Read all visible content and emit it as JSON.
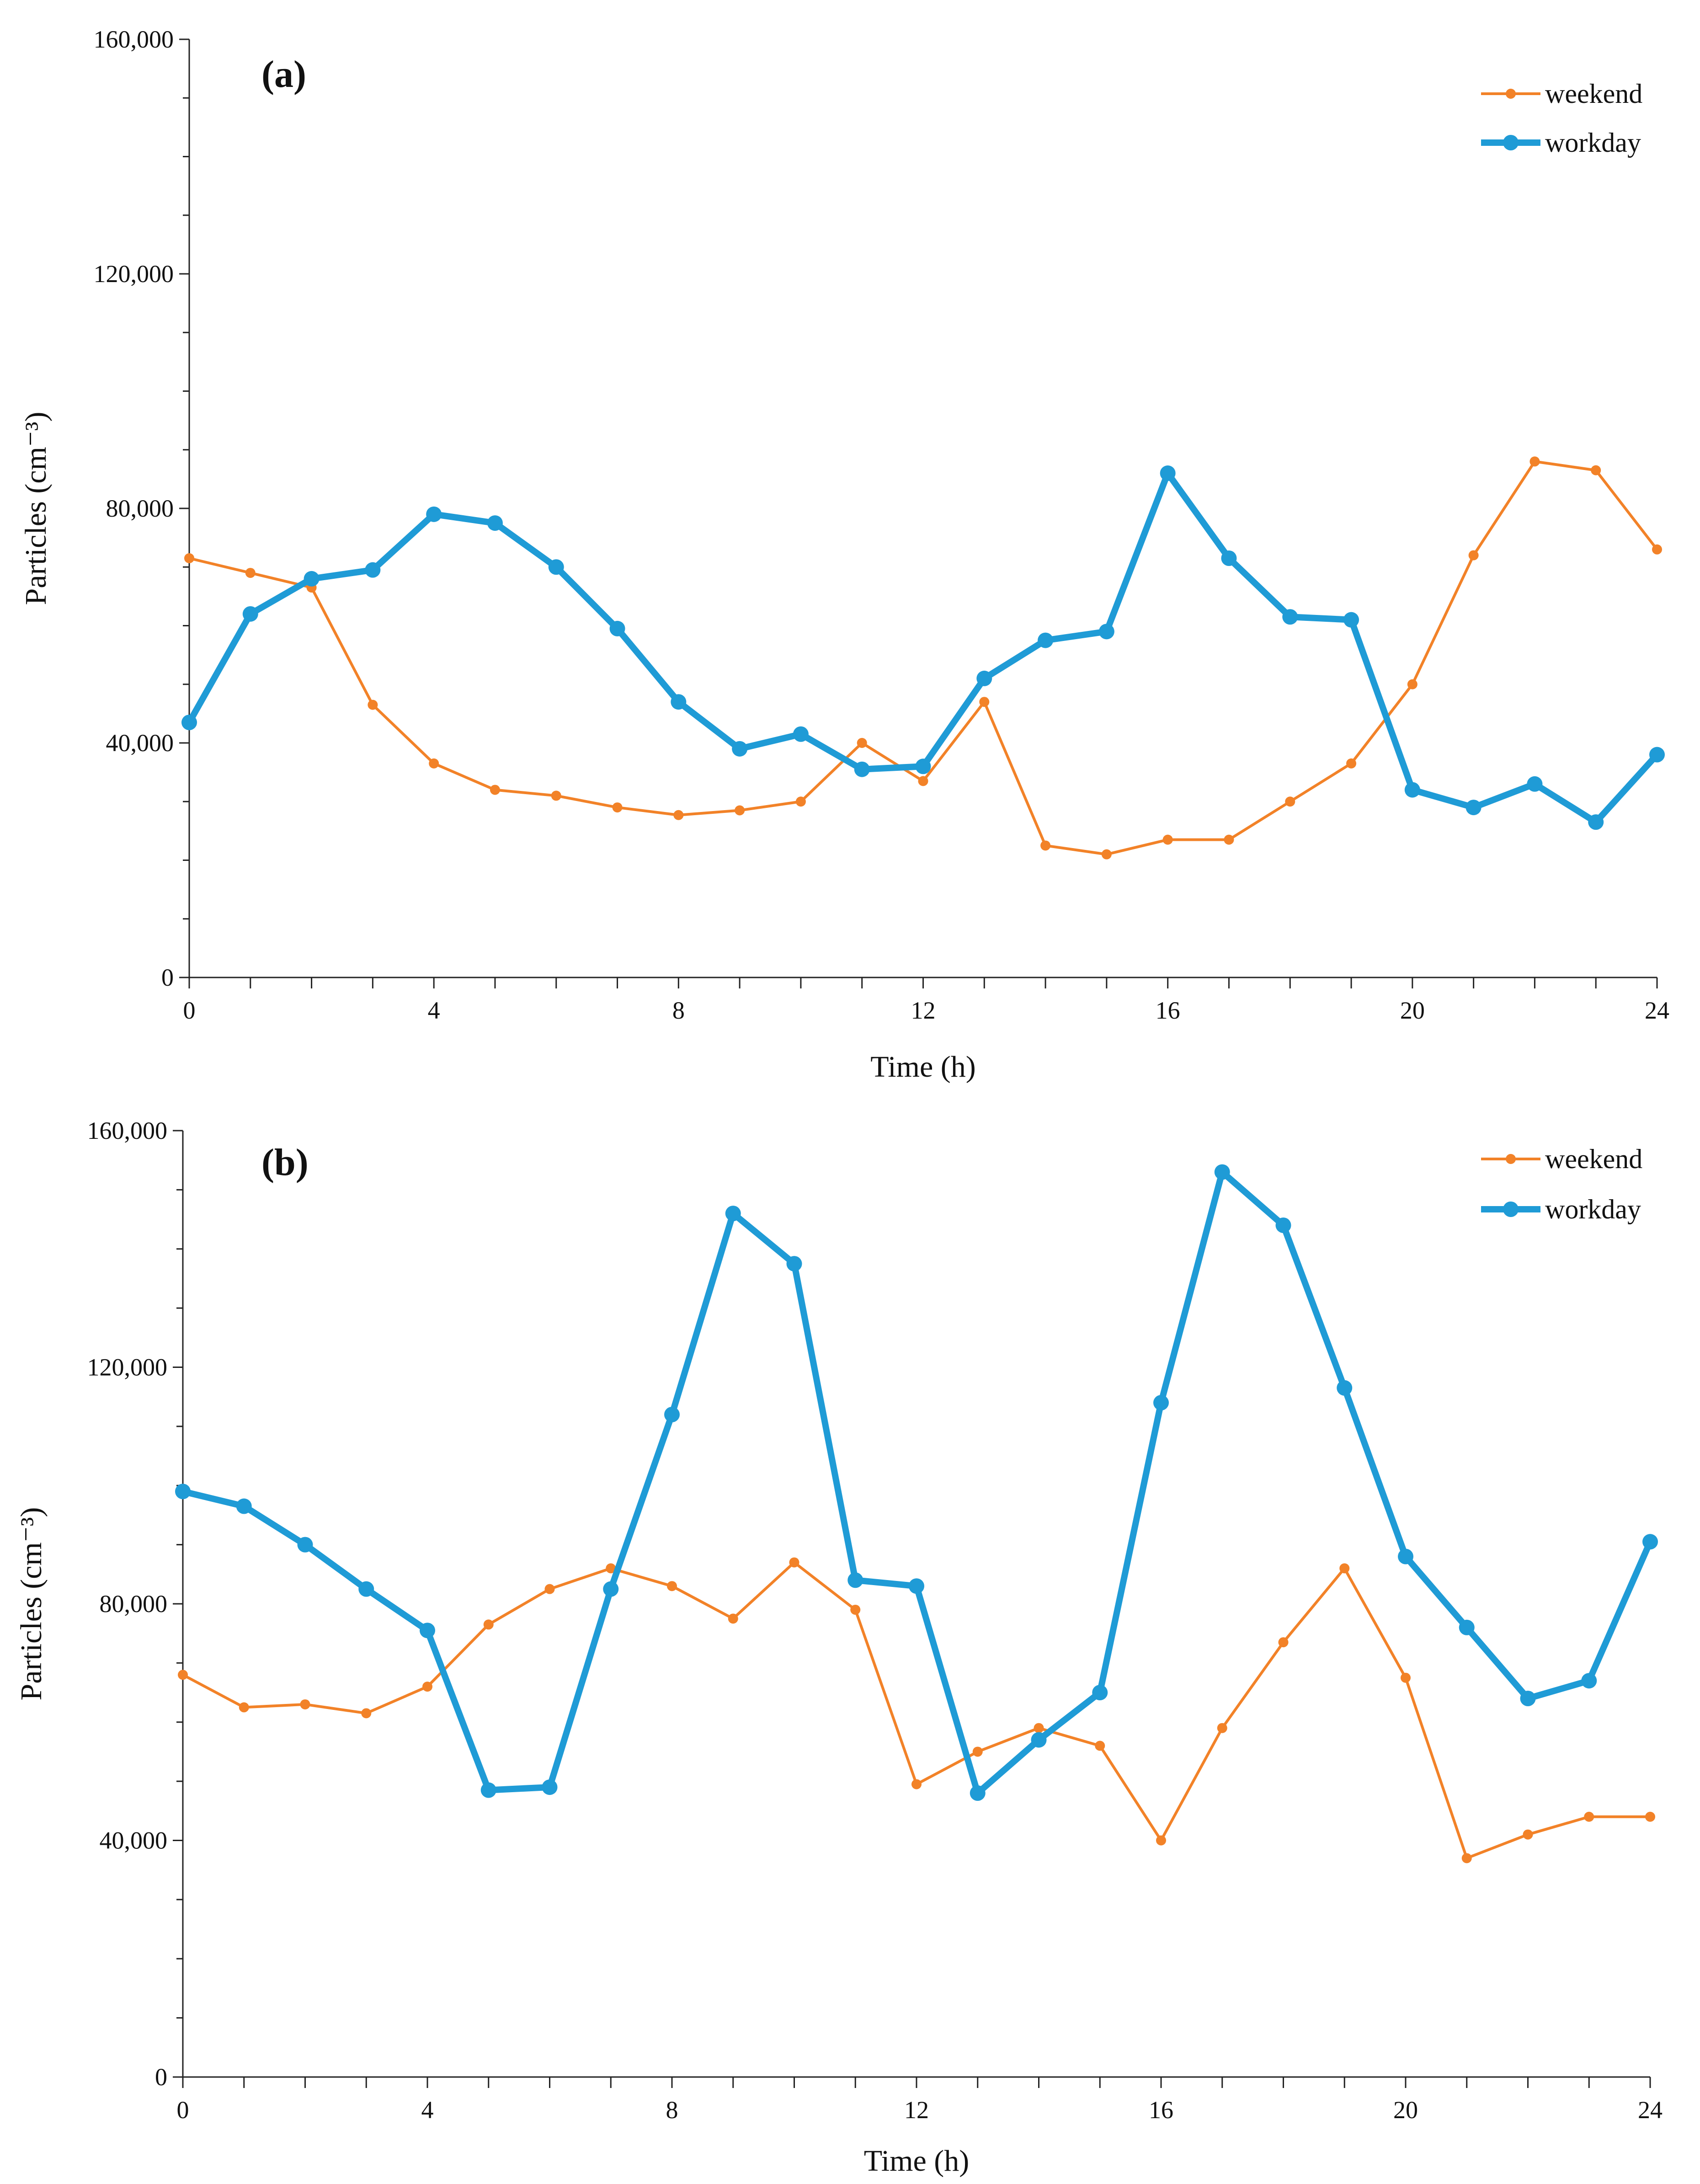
{
  "chart_data": [
    {
      "type": "line",
      "panel_label": "(a)",
      "xlabel": "Time (h)",
      "ylabel": "Particles (cm⁻³)",
      "xlim": [
        0,
        24
      ],
      "ylim": [
        0,
        160000
      ],
      "xticks": [
        0,
        4,
        8,
        12,
        16,
        20,
        24
      ],
      "yticks": [
        0,
        40000,
        80000,
        120000,
        160000
      ],
      "ytick_labels": [
        "0",
        "40,000",
        "80,000",
        "120,000",
        "160,000"
      ],
      "legend_position": "top-right",
      "x": [
        0,
        1,
        2,
        3,
        4,
        5,
        6,
        7,
        8,
        9,
        10,
        11,
        12,
        13,
        14,
        15,
        16,
        17,
        18,
        19,
        20,
        21,
        22,
        23,
        24
      ],
      "series": [
        {
          "name": "weekend",
          "color": "#F28228",
          "values": [
            71500,
            69000,
            66500,
            46500,
            36500,
            32000,
            31000,
            29000,
            27700,
            28500,
            30000,
            40000,
            33500,
            47000,
            22500,
            21000,
            23500,
            23500,
            30000,
            36500,
            50000,
            72000,
            88000,
            86500,
            73000
          ]
        },
        {
          "name": "workday",
          "color": "#1F9BD6",
          "values": [
            43500,
            62000,
            68000,
            69500,
            79000,
            77500,
            70000,
            59500,
            47000,
            39000,
            41500,
            35500,
            36000,
            51000,
            57500,
            59000,
            86000,
            71500,
            61500,
            61000,
            32000,
            29000,
            33000,
            26500,
            38000
          ]
        }
      ]
    },
    {
      "type": "line",
      "panel_label": "(b)",
      "xlabel": "Time (h)",
      "ylabel": "Particles (cm⁻³)",
      "xlim": [
        0,
        24
      ],
      "ylim": [
        0,
        160000
      ],
      "xticks": [
        0,
        4,
        8,
        12,
        16,
        20,
        24
      ],
      "yticks": [
        0,
        40000,
        80000,
        120000,
        160000
      ],
      "ytick_labels": [
        "0",
        "40,000",
        "80,000",
        "120,000",
        "160,000"
      ],
      "legend_position": "top-right",
      "x": [
        0,
        1,
        2,
        3,
        4,
        5,
        6,
        7,
        8,
        9,
        10,
        11,
        12,
        13,
        14,
        15,
        16,
        17,
        18,
        19,
        20,
        21,
        22,
        23,
        24
      ],
      "series": [
        {
          "name": "weekend",
          "color": "#F28228",
          "values": [
            68000,
            62500,
            63000,
            61500,
            66000,
            76500,
            82500,
            86000,
            83000,
            77500,
            87000,
            79000,
            49500,
            55000,
            59000,
            56000,
            40000,
            59000,
            73500,
            86000,
            67500,
            37000,
            41000,
            44000,
            44000
          ]
        },
        {
          "name": "workday",
          "color": "#1F9BD6",
          "values": [
            99000,
            96500,
            90000,
            82500,
            75500,
            48500,
            49000,
            82500,
            112000,
            146000,
            137500,
            84000,
            83000,
            48000,
            57000,
            65000,
            114000,
            153000,
            144000,
            116500,
            88000,
            76000,
            64000,
            67000,
            90500
          ]
        }
      ]
    }
  ]
}
